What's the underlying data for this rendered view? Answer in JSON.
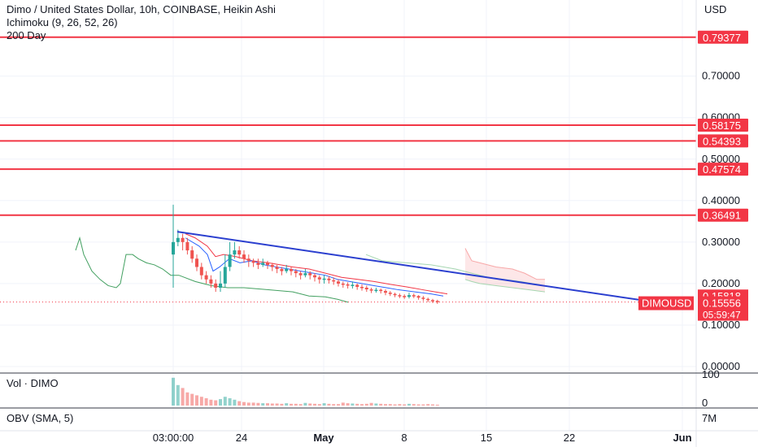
{
  "header": {
    "title": "Dimo / United States Dollar, 10h, COINBASE, Heikin Ashi",
    "indicator1": "Ichimoku (9, 26, 52, 26)",
    "indicator2": "200 Day",
    "currency": "USD"
  },
  "volume_pane": {
    "title": "Vol · DIMO",
    "ticks": [
      "100",
      "0"
    ]
  },
  "obv_pane": {
    "title": "OBV (SMA, 5)",
    "tick": "7M"
  },
  "chart_data": {
    "type": "candlestick",
    "price_axis": {
      "ticks": [
        0.0,
        0.1,
        0.2,
        0.3,
        0.4,
        0.5,
        0.6,
        0.7
      ],
      "tick_labels": [
        "0.00000",
        "0.10000",
        "0.20000",
        "0.30000",
        "0.40000",
        "0.50000",
        "0.60000",
        "0.70000"
      ],
      "range": [
        0.0,
        0.88
      ]
    },
    "x_axis": {
      "labels": [
        "03:00:00",
        "24",
        "May",
        "8",
        "15",
        "22",
        "Jun"
      ]
    },
    "horizontal_levels": [
      {
        "value": 0.79377,
        "label": "0.79377"
      },
      {
        "value": 0.58175,
        "label": "0.58175"
      },
      {
        "value": 0.54393,
        "label": "0.54393"
      },
      {
        "value": 0.47574,
        "label": "0.47574"
      },
      {
        "value": 0.36491,
        "label": "0.36491"
      }
    ],
    "last_price": {
      "value": 0.15556,
      "label": "0.15556",
      "symbol": "DIMOUSD",
      "countdown": "05:59:47"
    },
    "prior_label": {
      "value": 0.15818,
      "label": "0.15818"
    },
    "trendline": {
      "from": [
        0,
        0.325
      ],
      "to": [
        97,
        0.15
      ]
    },
    "candles": [
      [
        0.27,
        0.3,
        0.39,
        0.19
      ],
      [
        0.3,
        0.31,
        0.33,
        0.29
      ],
      [
        0.31,
        0.3,
        0.32,
        0.28
      ],
      [
        0.3,
        0.28,
        0.31,
        0.27
      ],
      [
        0.28,
        0.26,
        0.29,
        0.25
      ],
      [
        0.26,
        0.24,
        0.27,
        0.23
      ],
      [
        0.24,
        0.22,
        0.25,
        0.21
      ],
      [
        0.22,
        0.21,
        0.23,
        0.2
      ],
      [
        0.21,
        0.2,
        0.22,
        0.19
      ],
      [
        0.2,
        0.19,
        0.21,
        0.18
      ],
      [
        0.19,
        0.2,
        0.23,
        0.18
      ],
      [
        0.2,
        0.24,
        0.27,
        0.19
      ],
      [
        0.24,
        0.27,
        0.3,
        0.23
      ],
      [
        0.27,
        0.28,
        0.3,
        0.26
      ],
      [
        0.28,
        0.27,
        0.29,
        0.26
      ],
      [
        0.27,
        0.26,
        0.28,
        0.25
      ],
      [
        0.26,
        0.255,
        0.27,
        0.24
      ],
      [
        0.255,
        0.25,
        0.26,
        0.24
      ],
      [
        0.25,
        0.245,
        0.26,
        0.235
      ],
      [
        0.245,
        0.25,
        0.26,
        0.24
      ],
      [
        0.25,
        0.245,
        0.255,
        0.235
      ],
      [
        0.245,
        0.24,
        0.25,
        0.23
      ],
      [
        0.24,
        0.235,
        0.245,
        0.225
      ],
      [
        0.235,
        0.23,
        0.24,
        0.22
      ],
      [
        0.23,
        0.235,
        0.245,
        0.225
      ],
      [
        0.235,
        0.23,
        0.24,
        0.22
      ],
      [
        0.23,
        0.225,
        0.235,
        0.215
      ],
      [
        0.225,
        0.22,
        0.23,
        0.21
      ],
      [
        0.22,
        0.225,
        0.235,
        0.215
      ],
      [
        0.225,
        0.22,
        0.23,
        0.21
      ],
      [
        0.22,
        0.215,
        0.225,
        0.205
      ],
      [
        0.215,
        0.21,
        0.22,
        0.2
      ],
      [
        0.21,
        0.212,
        0.22,
        0.2
      ],
      [
        0.212,
        0.208,
        0.218,
        0.2
      ],
      [
        0.208,
        0.205,
        0.215,
        0.197
      ],
      [
        0.205,
        0.2,
        0.21,
        0.193
      ],
      [
        0.2,
        0.198,
        0.205,
        0.19
      ],
      [
        0.198,
        0.195,
        0.203,
        0.188
      ],
      [
        0.195,
        0.197,
        0.205,
        0.188
      ],
      [
        0.197,
        0.192,
        0.2,
        0.185
      ],
      [
        0.192,
        0.19,
        0.198,
        0.183
      ],
      [
        0.19,
        0.186,
        0.195,
        0.18
      ],
      [
        0.186,
        0.183,
        0.19,
        0.177
      ],
      [
        0.183,
        0.185,
        0.19,
        0.178
      ],
      [
        0.185,
        0.182,
        0.188,
        0.176
      ],
      [
        0.182,
        0.178,
        0.186,
        0.172
      ],
      [
        0.178,
        0.175,
        0.182,
        0.17
      ],
      [
        0.175,
        0.172,
        0.178,
        0.167
      ],
      [
        0.172,
        0.17,
        0.176,
        0.165
      ],
      [
        0.17,
        0.168,
        0.174,
        0.163
      ],
      [
        0.168,
        0.172,
        0.178,
        0.164
      ],
      [
        0.172,
        0.17,
        0.176,
        0.165
      ],
      [
        0.17,
        0.166,
        0.172,
        0.161
      ],
      [
        0.166,
        0.163,
        0.17,
        0.158
      ],
      [
        0.163,
        0.16,
        0.166,
        0.155
      ],
      [
        0.16,
        0.158,
        0.163,
        0.153
      ],
      [
        0.158,
        0.156,
        0.161,
        0.151
      ]
    ],
    "volume": [
      95,
      70,
      60,
      45,
      40,
      35,
      30,
      25,
      20,
      18,
      22,
      30,
      25,
      20,
      15,
      12,
      10,
      10,
      9,
      8,
      8,
      7,
      7,
      6,
      8,
      6,
      6,
      5,
      9,
      7,
      6,
      5,
      8,
      6,
      5,
      5,
      10,
      8,
      7,
      6,
      5,
      6,
      9,
      7,
      6,
      5,
      5,
      4,
      5,
      4,
      6,
      5,
      4,
      4,
      5,
      4,
      3
    ],
    "volume_axis": {
      "range": [
        0,
        100
      ]
    }
  }
}
